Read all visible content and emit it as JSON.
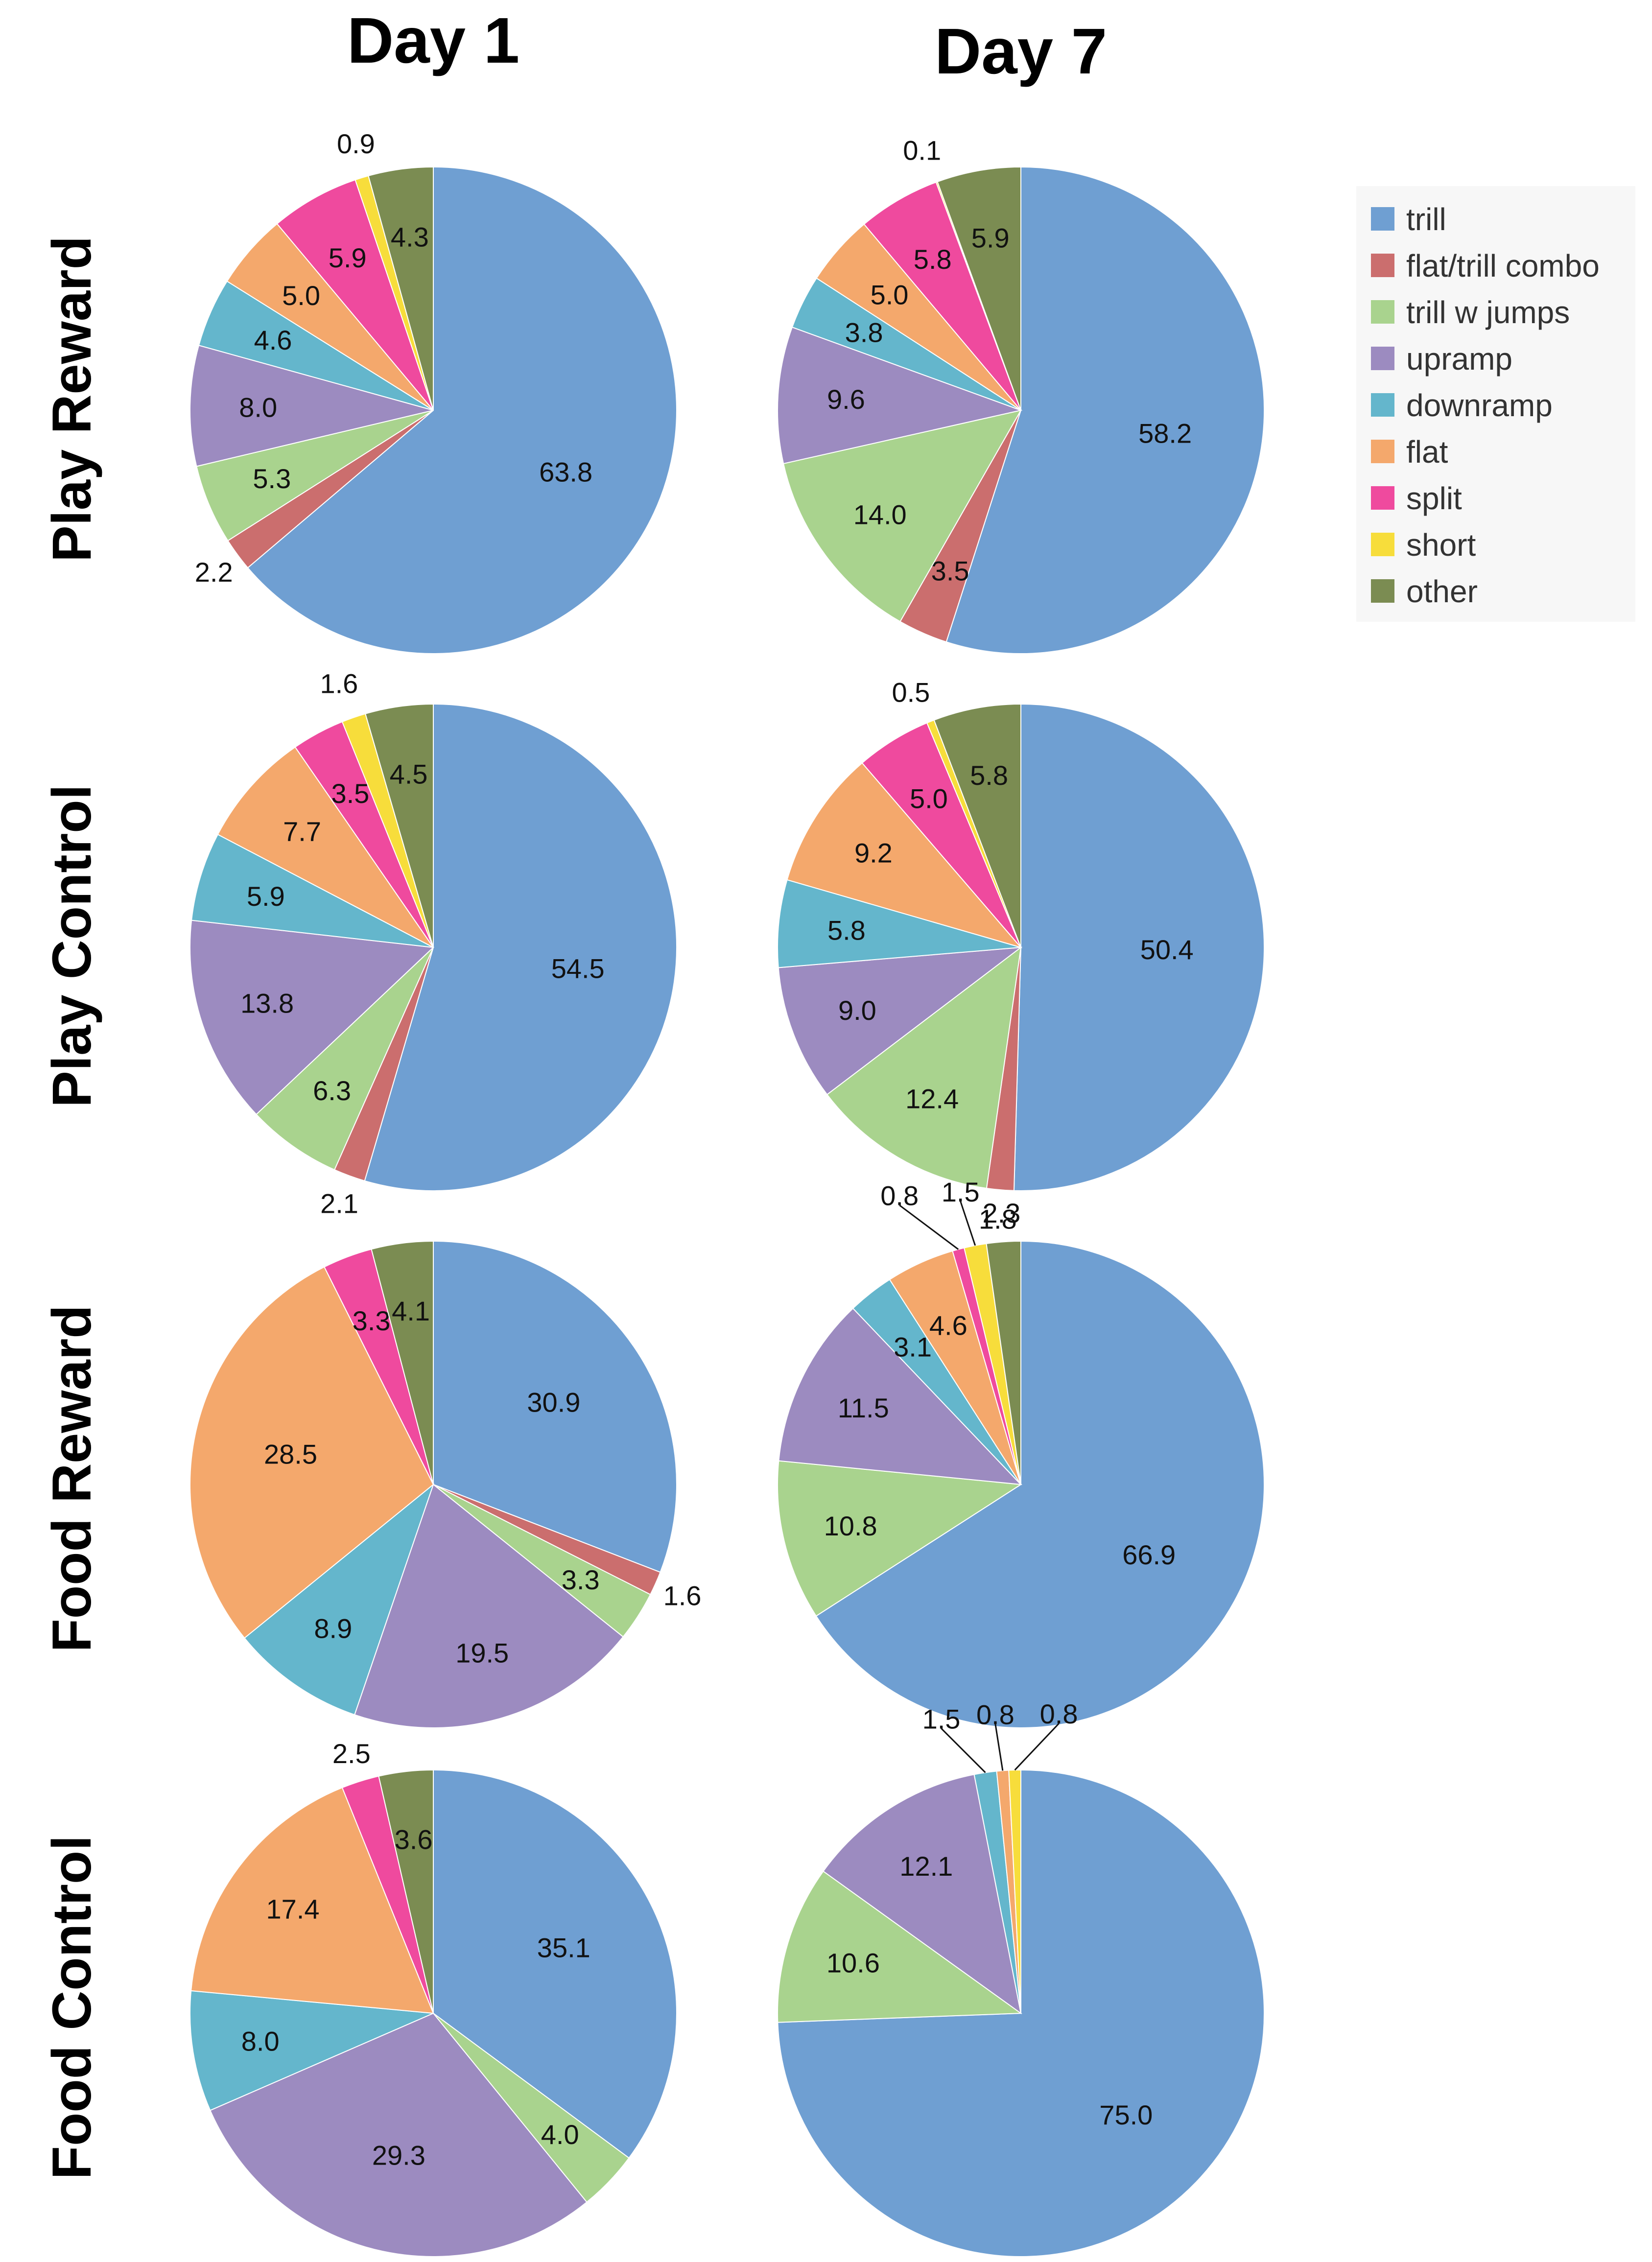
{
  "figure": {
    "column_titles": [
      "Day 1",
      "Day 7"
    ],
    "row_titles": [
      "Play Reward",
      "Play Control",
      "Food Reward",
      "Food Control"
    ]
  },
  "legend": {
    "items": [
      {
        "label": "trill",
        "color": "#6f9fd2"
      },
      {
        "label": "flat/trill combo",
        "color": "#cb6e6e"
      },
      {
        "label": "trill w jumps",
        "color": "#a9d38e"
      },
      {
        "label": "upramp",
        "color": "#9c8bc0"
      },
      {
        "label": "downramp",
        "color": "#64b6cc"
      },
      {
        "label": "flat",
        "color": "#f4a86c"
      },
      {
        "label": "split",
        "color": "#ef4a9e"
      },
      {
        "label": "short",
        "color": "#f7dd3b"
      },
      {
        "label": "other",
        "color": "#7b8c52"
      }
    ]
  },
  "chart_data": [
    {
      "type": "pie",
      "title": "Play Reward — Day 1",
      "categories": [
        "trill",
        "flat/trill combo",
        "trill w jumps",
        "upramp",
        "downramp",
        "flat",
        "split",
        "short",
        "other"
      ],
      "values": [
        63.8,
        2.2,
        5.3,
        8.0,
        4.6,
        5.0,
        5.9,
        0.9,
        4.3
      ],
      "labels": [
        "63.8",
        "2.2",
        "5.3",
        "8.0",
        "4.6",
        "5.0",
        "5.9",
        "0.9",
        "4.3"
      ]
    },
    {
      "type": "pie",
      "title": "Play Reward — Day 7",
      "categories": [
        "trill",
        "flat/trill combo",
        "trill w jumps",
        "upramp",
        "downramp",
        "flat",
        "split",
        "short",
        "other"
      ],
      "values": [
        58.2,
        3.5,
        14.0,
        9.6,
        3.8,
        5.0,
        5.8,
        0.1,
        5.9
      ],
      "labels": [
        "58.2",
        "3.5",
        "14.0",
        "9.6",
        "3.8",
        "5.0",
        "5.8",
        "0.1",
        "5.9"
      ]
    },
    {
      "type": "pie",
      "title": "Play Control — Day 1",
      "categories": [
        "trill",
        "flat/trill combo",
        "trill w jumps",
        "upramp",
        "downramp",
        "flat",
        "split",
        "short",
        "other"
      ],
      "values": [
        54.5,
        2.1,
        6.3,
        13.8,
        5.9,
        7.7,
        3.5,
        1.6,
        4.5
      ],
      "labels": [
        "54.5",
        "2.1",
        "6.3",
        "13.8",
        "5.9",
        "7.7",
        "3.5",
        "1.6",
        "4.5"
      ]
    },
    {
      "type": "pie",
      "title": "Play Control — Day 7",
      "categories": [
        "trill",
        "flat/trill combo",
        "trill w jumps",
        "upramp",
        "downramp",
        "flat",
        "split",
        "short",
        "other"
      ],
      "values": [
        50.4,
        1.8,
        12.4,
        9.0,
        5.8,
        9.2,
        5.0,
        0.5,
        5.8
      ],
      "labels": [
        "50.4",
        "1.8",
        "12.4",
        "9.0",
        "5.8",
        "9.2",
        "5.0",
        "0.5",
        "5.8"
      ]
    },
    {
      "type": "pie",
      "title": "Food Reward — Day 1",
      "categories": [
        "trill",
        "flat/trill combo",
        "trill w jumps",
        "upramp",
        "downramp",
        "flat",
        "split",
        "short",
        "other"
      ],
      "values": [
        30.9,
        1.6,
        3.3,
        19.5,
        8.9,
        28.5,
        3.3,
        0,
        4.1
      ],
      "labels": [
        "30.9",
        "1.6",
        "3.3",
        "19.5",
        "8.9",
        "28.5",
        "3.3",
        "",
        "4.1"
      ]
    },
    {
      "type": "pie",
      "title": "Food Reward — Day 7",
      "categories": [
        "trill",
        "flat/trill combo",
        "trill w jumps",
        "upramp",
        "downramp",
        "flat",
        "split",
        "short",
        "other"
      ],
      "values": [
        66.9,
        0,
        10.8,
        11.5,
        3.1,
        4.6,
        0.8,
        1.5,
        2.3
      ],
      "labels": [
        "66.9",
        "",
        "10.8",
        "11.5",
        "3.1",
        "4.6",
        "0.8",
        "1.5",
        "2.3"
      ]
    },
    {
      "type": "pie",
      "title": "Food Control — Day 1",
      "categories": [
        "trill",
        "flat/trill combo",
        "trill w jumps",
        "upramp",
        "downramp",
        "flat",
        "split",
        "short",
        "other"
      ],
      "values": [
        35.1,
        0,
        4.0,
        29.3,
        8.0,
        17.4,
        2.5,
        0,
        3.6
      ],
      "labels": [
        "35.1",
        "",
        "4.0",
        "29.3",
        "8.0",
        "17.4",
        "2.5",
        "",
        "3.6"
      ]
    },
    {
      "type": "pie",
      "title": "Food Control — Day 7",
      "categories": [
        "trill",
        "flat/trill combo",
        "trill w jumps",
        "upramp",
        "downramp",
        "flat",
        "split",
        "short",
        "other"
      ],
      "values": [
        75.0,
        0,
        10.6,
        12.1,
        1.5,
        0.8,
        0,
        0.8,
        0
      ],
      "labels": [
        "75.0",
        "",
        "10.6",
        "12.1",
        "1.5",
        "0.8",
        "",
        "0.8",
        ""
      ]
    }
  ]
}
